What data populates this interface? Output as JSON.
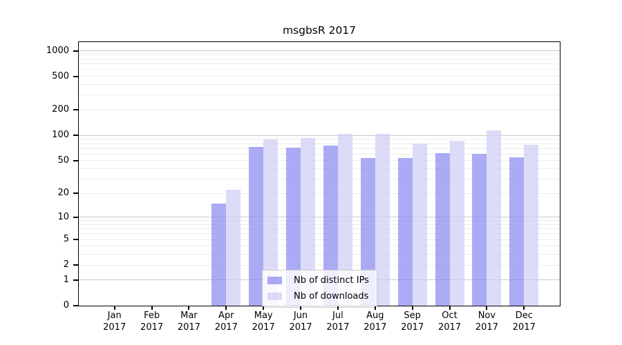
{
  "title": "msgbsR 2017",
  "chart_data": {
    "type": "bar",
    "title": "msgbsR 2017",
    "categories": [
      "Jan",
      "Feb",
      "Mar",
      "Apr",
      "May",
      "Jun",
      "Jul",
      "Aug",
      "Sep",
      "Oct",
      "Nov",
      "Dec"
    ],
    "year": "2017",
    "series": [
      {
        "name": "Nb of distinct IPs",
        "color": "rgba(138,138,241,0.72)",
        "values": [
          0,
          0,
          0,
          15,
          73,
          72,
          75,
          54,
          54,
          61,
          60,
          55
        ]
      },
      {
        "name": "Nb of downloads",
        "color": "rgba(206,206,246,0.72)",
        "values": [
          0,
          0,
          0,
          22,
          90,
          94,
          105,
          104,
          80,
          86,
          114,
          77
        ]
      }
    ],
    "yscale": "log1p",
    "ylim": [
      0,
      1265
    ],
    "y_ticks": [
      0,
      1,
      2,
      5,
      10,
      20,
      50,
      100,
      200,
      500,
      1000
    ],
    "grid": "on",
    "legend_position": "lower-center",
    "xlabel": "",
    "ylabel": ""
  },
  "colors": {
    "major_grid": "#c9c9c9",
    "minor_grid": "#ececec",
    "spine": "#000000",
    "legend_border": "#cccccc",
    "background": "#ffffff"
  }
}
